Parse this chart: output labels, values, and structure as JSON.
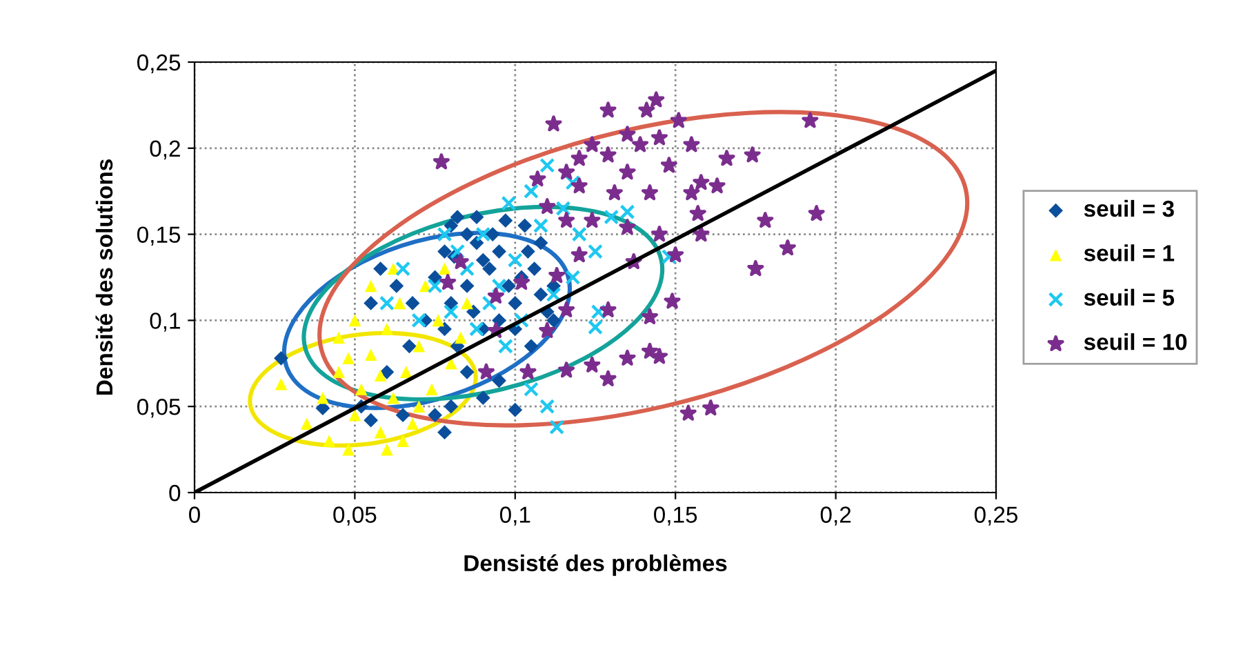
{
  "chart_data": {
    "type": "scatter",
    "xlabel": "Densisté des problèmes",
    "ylabel": "Densité des solutions",
    "xlim": [
      0,
      0.25
    ],
    "ylim": [
      0,
      0.25
    ],
    "xticks": [
      0,
      {
        "value": 0.05,
        "label": "0,05"
      },
      {
        "value": 0.1,
        "label": "0,1"
      },
      {
        "value": 0.15,
        "label": "0,15"
      },
      {
        "value": 0.2,
        "label": "0,2"
      },
      {
        "value": 0.25,
        "label": "0,25"
      }
    ],
    "yticks": [
      0,
      {
        "value": 0.05,
        "label": "0,05"
      },
      {
        "value": 0.1,
        "label": "0,1"
      },
      {
        "value": 0.15,
        "label": "0,15"
      },
      {
        "value": 0.2,
        "label": "0,2"
      },
      {
        "value": 0.25,
        "label": "0,25"
      }
    ],
    "grid": true,
    "legend": "right",
    "series": [
      {
        "name": "seuil = 3",
        "color": "#0b4f9c",
        "marker": "diamond",
        "x": [
          0.027,
          0.04,
          0.052,
          0.055,
          0.06,
          0.065,
          0.067,
          0.072,
          0.075,
          0.078,
          0.08,
          0.082,
          0.085,
          0.088,
          0.09,
          0.092,
          0.095,
          0.098,
          0.1,
          0.102,
          0.104,
          0.106,
          0.108,
          0.11,
          0.112,
          0.085,
          0.08,
          0.078,
          0.082,
          0.09,
          0.095,
          0.1,
          0.105,
          0.085,
          0.08,
          0.078,
          0.075,
          0.09,
          0.1,
          0.095,
          0.068,
          0.063,
          0.058,
          0.055,
          0.088,
          0.093,
          0.097,
          0.103,
          0.108,
          0.112,
          0.087,
          0.081
        ],
        "values": [
          0.078,
          0.049,
          0.05,
          0.042,
          0.07,
          0.045,
          0.085,
          0.1,
          0.125,
          0.14,
          0.155,
          0.16,
          0.15,
          0.145,
          0.135,
          0.13,
          0.14,
          0.12,
          0.11,
          0.125,
          0.14,
          0.13,
          0.115,
          0.105,
          0.1,
          0.12,
          0.11,
          0.095,
          0.085,
          0.095,
          0.1,
          0.095,
          0.085,
          0.07,
          0.05,
          0.035,
          0.045,
          0.055,
          0.048,
          0.065,
          0.11,
          0.12,
          0.13,
          0.11,
          0.16,
          0.15,
          0.158,
          0.155,
          0.145,
          0.12,
          0.105,
          0.137
        ]
      },
      {
        "name": "seuil = 1",
        "color": "#ffff00",
        "marker": "triangle",
        "x": [
          0.027,
          0.035,
          0.04,
          0.042,
          0.045,
          0.048,
          0.05,
          0.052,
          0.055,
          0.058,
          0.06,
          0.062,
          0.064,
          0.066,
          0.068,
          0.07,
          0.072,
          0.074,
          0.076,
          0.078,
          0.05,
          0.055,
          0.045,
          0.06,
          0.065,
          0.08,
          0.083,
          0.085,
          0.07,
          0.058,
          0.048,
          0.062
        ],
        "values": [
          0.063,
          0.04,
          0.055,
          0.03,
          0.07,
          0.025,
          0.045,
          0.06,
          0.08,
          0.035,
          0.095,
          0.055,
          0.11,
          0.07,
          0.04,
          0.085,
          0.12,
          0.06,
          0.1,
          0.13,
          0.1,
          0.12,
          0.09,
          0.025,
          0.03,
          0.075,
          0.09,
          0.11,
          0.05,
          0.068,
          0.078,
          0.13
        ]
      },
      {
        "name": "seuil = 5",
        "color": "#1ec8f0",
        "marker": "cross",
        "x": [
          0.113,
          0.148,
          0.126,
          0.125,
          0.135,
          0.11,
          0.098,
          0.105,
          0.09,
          0.085,
          0.095,
          0.1,
          0.108,
          0.115,
          0.12,
          0.075,
          0.07,
          0.08,
          0.088,
          0.092,
          0.097,
          0.118,
          0.112,
          0.105,
          0.11,
          0.125,
          0.13,
          0.06,
          0.065,
          0.078,
          0.082,
          0.102,
          0.118
        ],
        "values": [
          0.038,
          0.137,
          0.105,
          0.096,
          0.163,
          0.19,
          0.168,
          0.175,
          0.15,
          0.13,
          0.12,
          0.135,
          0.155,
          0.165,
          0.15,
          0.12,
          0.1,
          0.105,
          0.095,
          0.11,
          0.085,
          0.125,
          0.115,
          0.06,
          0.05,
          0.14,
          0.16,
          0.11,
          0.13,
          0.15,
          0.14,
          0.1,
          0.18
        ]
      },
      {
        "name": "seuil = 10",
        "color": "#7b2d8e",
        "marker": "star",
        "x": [
          0.077,
          0.112,
          0.129,
          0.141,
          0.144,
          0.151,
          0.135,
          0.124,
          0.129,
          0.12,
          0.139,
          0.145,
          0.155,
          0.148,
          0.135,
          0.116,
          0.107,
          0.12,
          0.131,
          0.142,
          0.11,
          0.116,
          0.124,
          0.135,
          0.145,
          0.157,
          0.158,
          0.15,
          0.137,
          0.12,
          0.113,
          0.102,
          0.094,
          0.083,
          0.079,
          0.116,
          0.129,
          0.142,
          0.149,
          0.142,
          0.135,
          0.145,
          0.129,
          0.116,
          0.124,
          0.104,
          0.154,
          0.161,
          0.174,
          0.175,
          0.192,
          0.194,
          0.163,
          0.166,
          0.158,
          0.155,
          0.11,
          0.094,
          0.091,
          0.185,
          0.178
        ],
        "values": [
          0.192,
          0.214,
          0.222,
          0.222,
          0.228,
          0.216,
          0.208,
          0.202,
          0.196,
          0.194,
          0.202,
          0.206,
          0.202,
          0.19,
          0.186,
          0.186,
          0.182,
          0.178,
          0.174,
          0.174,
          0.166,
          0.158,
          0.158,
          0.154,
          0.15,
          0.162,
          0.15,
          0.138,
          0.134,
          0.138,
          0.126,
          0.122,
          0.114,
          0.134,
          0.122,
          0.106,
          0.106,
          0.102,
          0.111,
          0.082,
          0.078,
          0.079,
          0.066,
          0.071,
          0.074,
          0.07,
          0.046,
          0.049,
          0.196,
          0.13,
          0.216,
          0.162,
          0.178,
          0.194,
          0.18,
          0.174,
          0.094,
          0.094,
          0.07,
          0.142,
          0.158
        ]
      },
      {
        "type": "line",
        "color": "#000000",
        "marker": "none",
        "x": [
          0,
          0.25
        ],
        "values": [
          0,
          0.245
        ]
      }
    ]
  }
}
